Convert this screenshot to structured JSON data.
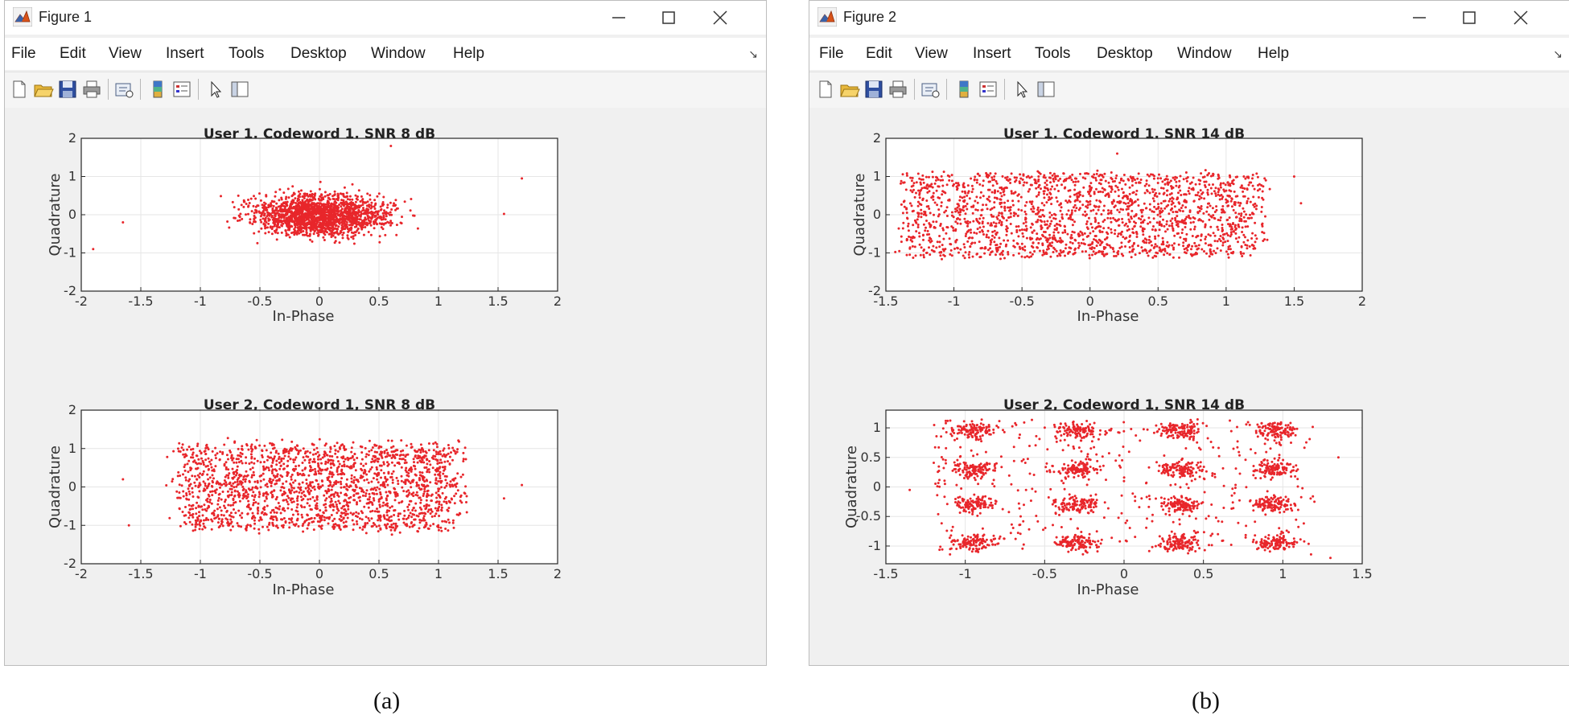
{
  "windows": [
    {
      "title": "Figure 1",
      "menu": [
        "File",
        "Edit",
        "View",
        "Insert",
        "Tools",
        "Desktop",
        "Window",
        "Help"
      ],
      "toolbar_icons": [
        "new-figure-icon",
        "open-file-icon",
        "save-icon",
        "print-icon",
        "link-plot-icon",
        "colorbar-icon",
        "legend-icon",
        "pointer-icon",
        "property-editor-icon"
      ],
      "caption": "(a)"
    },
    {
      "title": "Figure 2",
      "menu": [
        "File",
        "Edit",
        "View",
        "Insert",
        "Tools",
        "Desktop",
        "Window",
        "Help"
      ],
      "toolbar_icons": [
        "new-figure-icon",
        "open-file-icon",
        "save-icon",
        "print-icon",
        "link-plot-icon",
        "colorbar-icon",
        "legend-icon",
        "pointer-icon",
        "property-editor-icon"
      ],
      "caption": "(b)"
    }
  ],
  "colors": {
    "marker": "#e8262b",
    "grid": "#e6e6e6",
    "axes_bg": "#ffffff",
    "figure_bg": "#f0f0f0"
  },
  "chart_data": [
    {
      "type": "scatter",
      "title": "User 1, Codeword 1, SNR 8 dB",
      "xlabel": "In-Phase",
      "ylabel": "Quadrature",
      "xlim": [
        -2,
        2
      ],
      "ylim": [
        -2,
        2
      ],
      "xticks": [
        -2,
        -1.5,
        -1,
        -0.5,
        0,
        0.5,
        1,
        1.5,
        2
      ],
      "yticks": [
        -2,
        -1,
        0,
        1,
        2
      ],
      "xtick_labels": [
        "-2",
        "-1.5",
        "-1",
        "-0.5",
        "0",
        "0.5",
        "1",
        "1.5",
        "2"
      ],
      "ytick_labels": [
        "-2",
        "-1",
        "0",
        "1",
        "2"
      ],
      "grid": true,
      "marker_color": "#e8262b",
      "cloud": {
        "x_center": 0,
        "x_half_width": 1.1,
        "y_center": 0,
        "y_half_width": 1.2,
        "noise": 0.2,
        "n_points": 1800,
        "spread": "gaussian-like oval"
      },
      "outliers": [
        [
          -1.9,
          -0.9
        ],
        [
          -1.65,
          -0.2
        ],
        [
          1.7,
          0.95
        ],
        [
          1.55,
          0.02
        ],
        [
          0.6,
          1.8
        ]
      ]
    },
    {
      "type": "scatter",
      "title": "User 2, Codeword 1, SNR 8 dB",
      "xlabel": "In-Phase",
      "ylabel": "Quadrature",
      "xlim": [
        -2,
        2
      ],
      "ylim": [
        -2,
        2
      ],
      "xticks": [
        -2,
        -1.5,
        -1,
        -0.5,
        0,
        0.5,
        1,
        1.5,
        2
      ],
      "yticks": [
        -2,
        -1,
        0,
        1,
        2
      ],
      "xtick_labels": [
        "-2",
        "-1.5",
        "-1",
        "-0.5",
        "0",
        "0.5",
        "1",
        "1.5",
        "2"
      ],
      "ytick_labels": [
        "-2",
        "-1",
        "0",
        "1",
        "2"
      ],
      "grid": true,
      "marker_color": "#e8262b",
      "cloud": {
        "x_center": 0,
        "x_half_width": 1.15,
        "y_center": 0,
        "y_half_width": 1.1,
        "noise": 0.15,
        "n_points": 2000,
        "spread": "uniform rectangle"
      },
      "outliers": [
        [
          -1.6,
          -1.0
        ],
        [
          -1.65,
          0.2
        ],
        [
          1.7,
          0.05
        ],
        [
          1.55,
          -0.3
        ]
      ]
    },
    {
      "type": "scatter",
      "title": "User 1, Codeword 1, SNR 14 dB",
      "xlabel": "In-Phase",
      "ylabel": "Quadrature",
      "xlim": [
        -1.5,
        2
      ],
      "ylim": [
        -2,
        2
      ],
      "xticks": [
        -1.5,
        -1,
        -0.5,
        0,
        0.5,
        1,
        1.5,
        2
      ],
      "yticks": [
        -2,
        -1,
        0,
        1,
        2
      ],
      "xtick_labels": [
        "-1.5",
        "-1",
        "-0.5",
        "0",
        "0.5",
        "1",
        "1.5",
        "2"
      ],
      "ytick_labels": [
        "-2",
        "-1",
        "0",
        "1",
        "2"
      ],
      "grid": true,
      "marker_color": "#e8262b",
      "cloud": {
        "x_center": -0.05,
        "x_half_width": 1.3,
        "y_center": 0,
        "y_half_width": 1.1,
        "noise": 0.08,
        "n_points": 2000,
        "spread": "uniform rectangle"
      },
      "outliers": [
        [
          1.5,
          1.0
        ],
        [
          1.55,
          0.3
        ],
        [
          0.2,
          1.6
        ]
      ]
    },
    {
      "type": "scatter",
      "title": "User 2, Codeword 1, SNR 14 dB",
      "xlabel": "In-Phase",
      "ylabel": "Quadrature",
      "xlim": [
        -1.5,
        1.5
      ],
      "ylim": [
        -1.3,
        1.3
      ],
      "xticks": [
        -1.5,
        -1,
        -0.5,
        0,
        0.5,
        1,
        1.5
      ],
      "yticks": [
        -1,
        -0.5,
        0,
        0.5,
        1
      ],
      "xtick_labels": [
        "-1.5",
        "-1",
        "-0.5",
        "0",
        "0.5",
        "1",
        "1.5"
      ],
      "ytick_labels": [
        "-1",
        "-0.5",
        "0",
        "0.5",
        "1"
      ],
      "grid": true,
      "marker_color": "#e8262b",
      "clusters": {
        "x_centers": [
          -0.95,
          -0.3,
          0.35,
          0.95
        ],
        "y_centers": [
          -0.95,
          -0.3,
          0.3,
          0.95
        ],
        "sigma": 0.13,
        "points_per_cluster": 110
      },
      "background_points": 450,
      "outliers": [
        [
          1.35,
          0.5
        ],
        [
          -1.35,
          -0.05
        ],
        [
          1.3,
          -1.2
        ]
      ]
    }
  ]
}
